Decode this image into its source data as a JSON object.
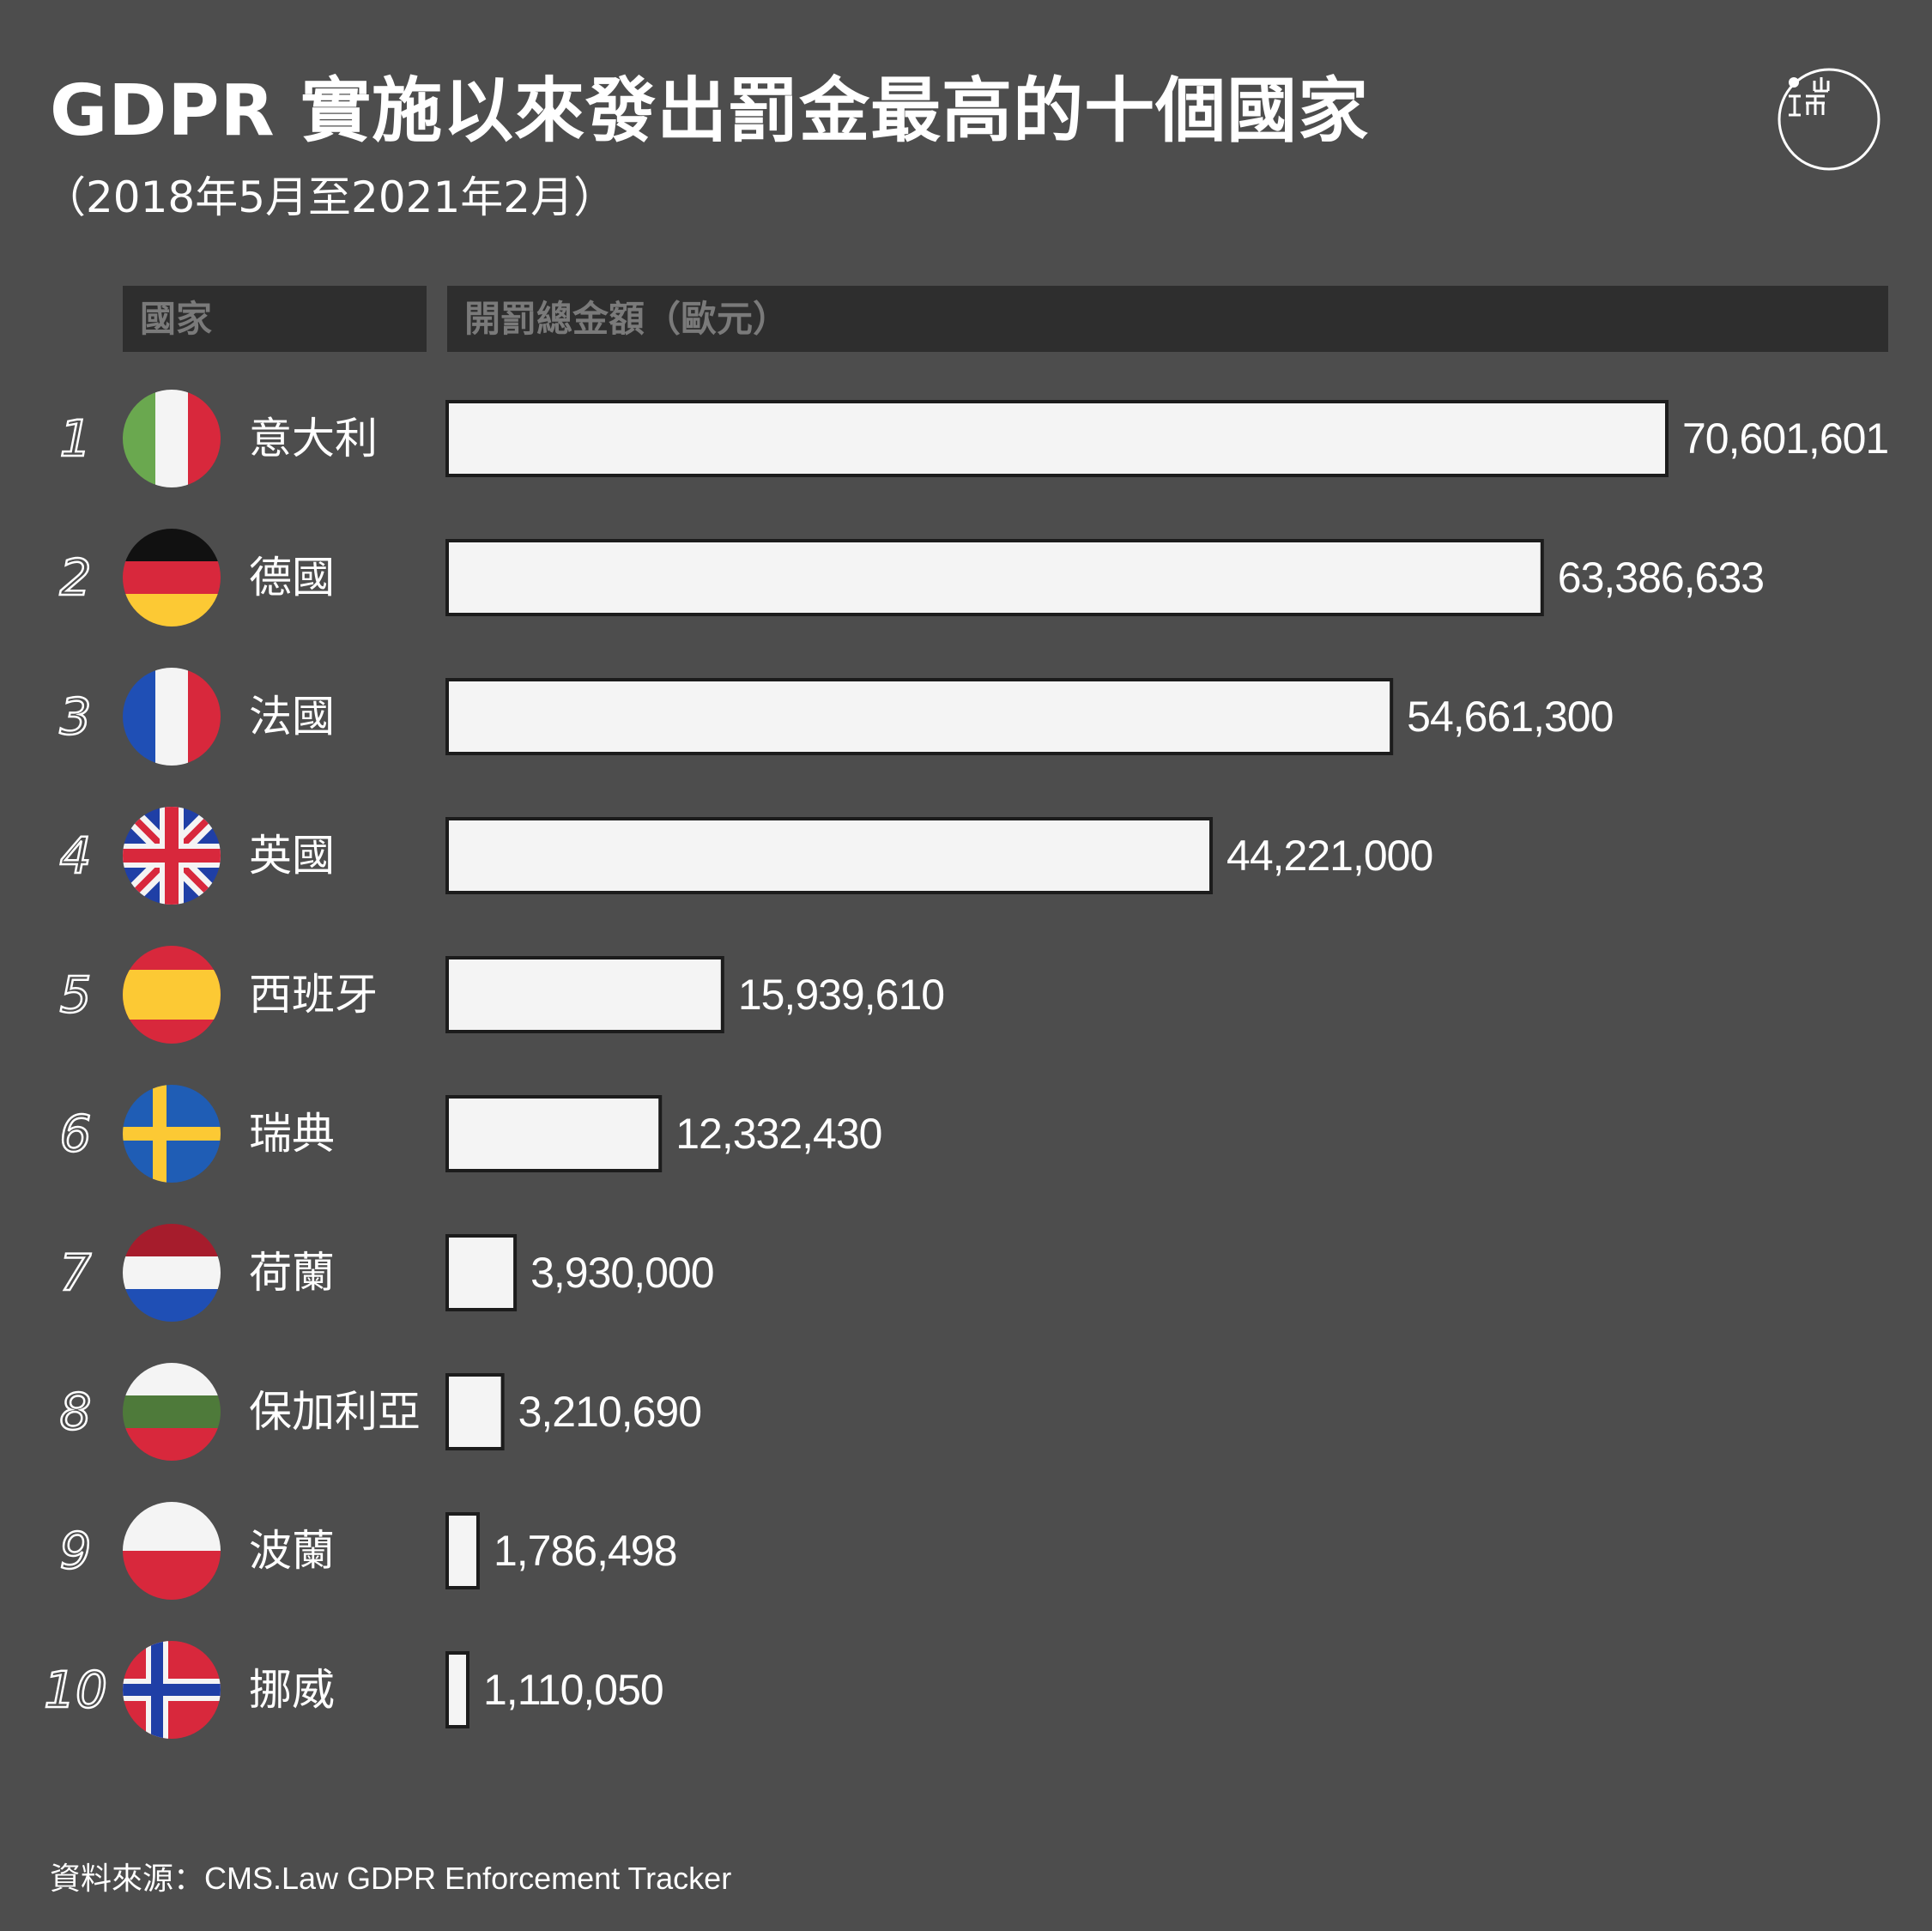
{
  "title": "GDPR 實施以來發出罰金最高的十個國家",
  "subtitle": "（2018年5月至2021年2月）",
  "logo_icon": "initium-logo-icon",
  "header": {
    "country": "國家",
    "amount": "開罰總金額（歐元）"
  },
  "source": "資料來源：CMS.Law GDPR Enforcement Tracker",
  "colors": {
    "background": "#4d4d4d",
    "header_bg": "#2e2e2e",
    "bar_fill": "#f4f4f4",
    "bar_stroke": "#1c1c1c"
  },
  "chart_data": {
    "type": "bar",
    "orientation": "horizontal",
    "categories": [
      "意大利",
      "德國",
      "法國",
      "英國",
      "西班牙",
      "瑞典",
      "荷蘭",
      "保加利亞",
      "波蘭",
      "挪威"
    ],
    "ranks": [
      "1",
      "2",
      "3",
      "4",
      "5",
      "6",
      "7",
      "8",
      "9",
      "10"
    ],
    "values": [
      70601601,
      63386633,
      54661300,
      44221000,
      15939610,
      12332430,
      3930000,
      3210690,
      1786498,
      1110050
    ],
    "value_labels": [
      "70,601,601",
      "63,386,633",
      "54,661,300",
      "44,221,000",
      "15,939,610",
      "12,332,430",
      "3,930,000",
      "3,210,690",
      "1,786,498",
      "1,110,050"
    ],
    "flags": [
      "italy-flag-icon",
      "germany-flag-icon",
      "france-flag-icon",
      "uk-flag-icon",
      "spain-flag-icon",
      "sweden-flag-icon",
      "netherlands-flag-icon",
      "bulgaria-flag-icon",
      "poland-flag-icon",
      "norway-flag-icon"
    ],
    "xlim": [
      0,
      70601601
    ],
    "grid": false,
    "legend": "none"
  }
}
